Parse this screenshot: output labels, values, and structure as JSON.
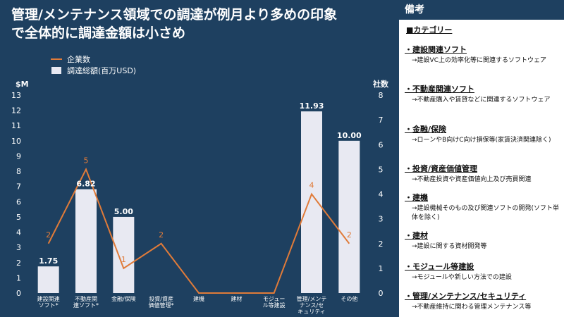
{
  "title_lines": [
    "管理/メンテナンス領域での調達が例月より多めの印象",
    "で全体的に調達金額は小さめ"
  ],
  "colors": {
    "background": "#1e4060",
    "bar": "#e8e9f2",
    "line": "#e07b39",
    "axis_text": "#ffffff",
    "gridline": "#3c5a78"
  },
  "chart_data": {
    "type": "bar",
    "categories": [
      "建設関連\nソフト*",
      "不動産関\n連ソフト*",
      "金融/保険",
      "投資/資産\n価値管理*",
      "建機",
      "建材",
      "モジュー\nル等建設",
      "管理/メンテ\nナンス/セ\nキュリティ",
      "その他"
    ],
    "series": [
      {
        "name": "調達総額(百万USD)",
        "kind": "bar",
        "axis": "left",
        "values": [
          1.75,
          6.82,
          5.0,
          0,
          0,
          0,
          0,
          11.93,
          10.0
        ],
        "labels": [
          "1.75",
          "6.82",
          "5.00",
          "",
          "",
          "",
          "",
          "11.93",
          "10.00"
        ]
      },
      {
        "name": "企業数",
        "kind": "line",
        "axis": "right",
        "values": [
          2,
          5,
          1,
          2,
          0,
          0,
          0,
          4,
          2
        ],
        "labels": [
          "2",
          "5",
          "1",
          "2",
          "",
          "",
          "",
          "4",
          "2"
        ]
      }
    ],
    "y_left": {
      "label": "$M",
      "ylim": [
        0,
        13
      ],
      "ticks": [
        "0",
        "1",
        "2",
        "3",
        "4",
        "5",
        "6",
        "7",
        "8",
        "9",
        "10",
        "11",
        "12",
        "13"
      ]
    },
    "y_right": {
      "label": "社数",
      "ylim": [
        0,
        8
      ],
      "ticks": [
        "0",
        "1",
        "2",
        "3",
        "4",
        "5",
        "6",
        "7",
        "8"
      ]
    },
    "legend_position": "top-left"
  },
  "notes": {
    "header": "備考",
    "list_title": "■カテゴリー",
    "items": [
      {
        "category": "・建設関連ソフト",
        "desc": "→建設VC上の効率化等に関連するソフトウェア"
      },
      {
        "category": "・不動産関連ソフト",
        "desc": "→不動産購入や賃貸などに関連するソフトウェア"
      },
      {
        "category": "・金融/保険",
        "desc": "→ローンやB向けC向け損保等(家賃決済関連除く)"
      },
      {
        "category": "・投資/資産価値管理",
        "desc": "→不動産投資や資産価値向上及び売買関連"
      },
      {
        "category": "・建機",
        "desc": "→建設機械そのもの及び関連ソフトの開発(ソフト単体を除く)"
      },
      {
        "category": "・建材",
        "desc": "→建設に関する資材開発等"
      },
      {
        "category": "・モジュール等建設",
        "desc": "→モジュールや新しい方法での建設"
      },
      {
        "category": "・管理/メンテナンス/セキュリティ",
        "desc": "→不動産維持に関わる管理メンテナンス等"
      }
    ]
  }
}
